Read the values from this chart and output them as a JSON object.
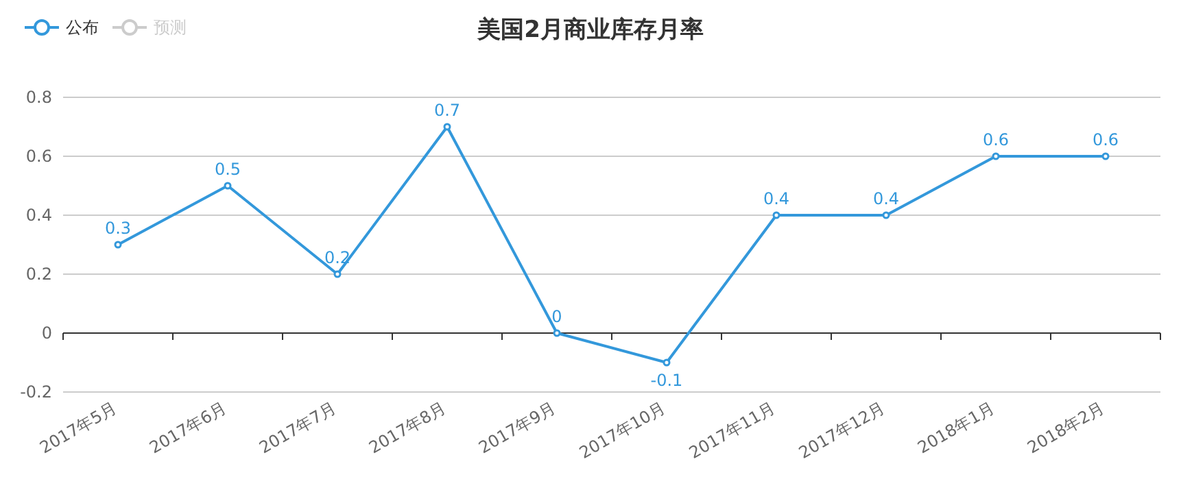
{
  "chart_data": {
    "type": "line",
    "title": "美国2月商业库存月率",
    "categories": [
      "2017年5月",
      "2017年6月",
      "2017年7月",
      "2017年8月",
      "2017年9月",
      "2017年10月",
      "2017年11月",
      "2017年12月",
      "2018年1月",
      "2018年2月"
    ],
    "series": [
      {
        "name": "公布",
        "color": "#3398db",
        "values": [
          0.3,
          0.5,
          0.2,
          0.7,
          0,
          -0.1,
          0.4,
          0.4,
          0.6,
          0.6
        ]
      },
      {
        "name": "预测",
        "color": "#cccccc",
        "values": [
          null,
          null,
          null,
          null,
          null,
          null,
          null,
          null,
          null,
          null
        ]
      }
    ],
    "ylim": [
      -0.2,
      0.8
    ],
    "yticks": [
      -0.2,
      0,
      0.2,
      0.4,
      0.6,
      0.8
    ],
    "grid": "y",
    "legend": "top left",
    "marker": "circle",
    "data_labels": true
  }
}
